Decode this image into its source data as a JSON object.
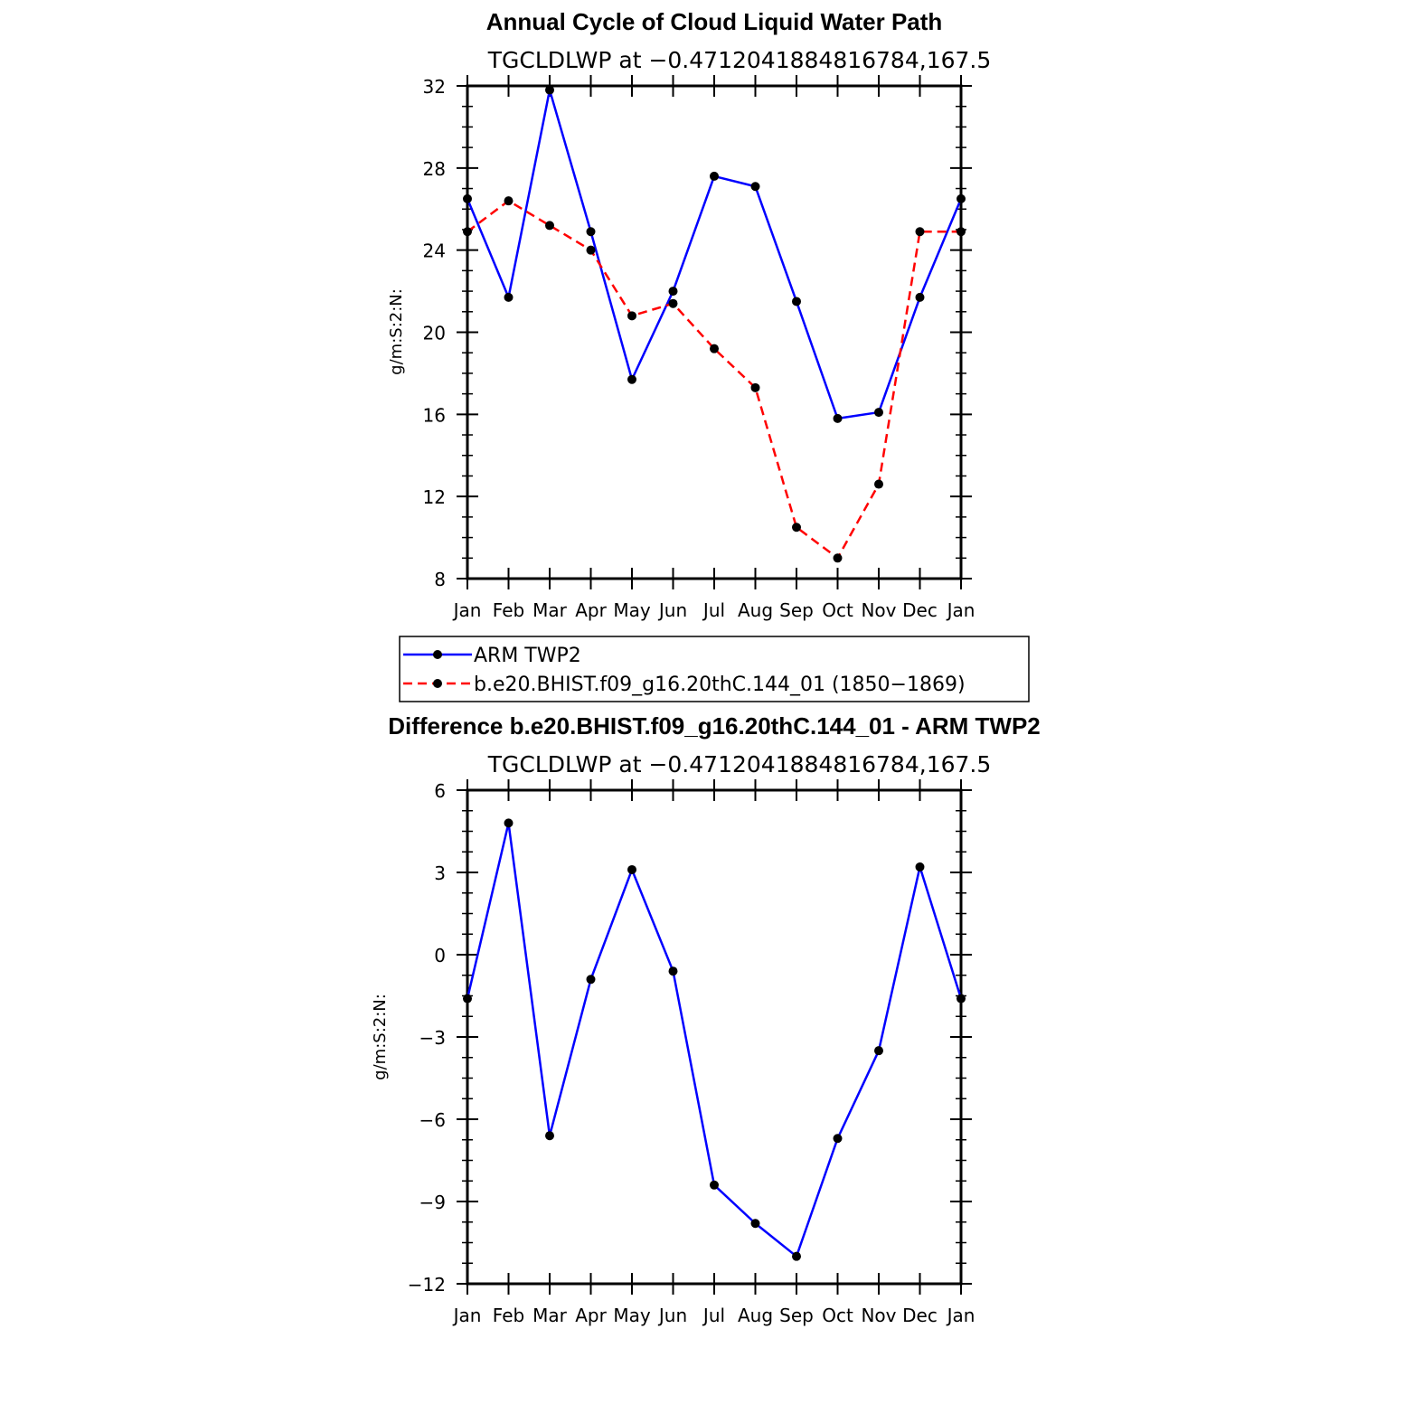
{
  "chart_data": [
    {
      "type": "line",
      "title": "Annual Cycle of Cloud Liquid Water Path",
      "subtitle": "TGCLDLWP at −0.4712041884816784,167.5",
      "xlabel": "",
      "ylabel": "g/m:S:2:N:",
      "categories": [
        "Jan",
        "Feb",
        "Mar",
        "Apr",
        "May",
        "Jun",
        "Jul",
        "Aug",
        "Sep",
        "Oct",
        "Nov",
        "Dec",
        "Jan"
      ],
      "ylim": [
        8,
        32
      ],
      "yticks": [
        "8",
        "12",
        "16",
        "20",
        "24",
        "28",
        "32"
      ],
      "grid": false,
      "legend_position": "below",
      "series": [
        {
          "name": "ARM  TWP2",
          "color": "#0000ff",
          "dash": "solid",
          "values": [
            26.5,
            21.7,
            31.8,
            24.9,
            17.7,
            22.0,
            27.6,
            27.1,
            21.5,
            15.8,
            16.1,
            21.7,
            26.5
          ]
        },
        {
          "name": "b.e20.BHIST.f09_g16.20thC.144_01  (1850−1869)",
          "color": "#ff0000",
          "dash": "dashed",
          "values": [
            24.9,
            26.4,
            25.2,
            24.0,
            20.8,
            21.4,
            19.2,
            17.3,
            10.5,
            9.0,
            12.6,
            24.9,
            24.9
          ]
        }
      ]
    },
    {
      "type": "line",
      "title": "Difference b.e20.BHIST.f09_g16.20thC.144_01 - ARM TWP2",
      "subtitle": "TGCLDLWP at −0.4712041884816784,167.5",
      "xlabel": "",
      "ylabel": "g/m:S:2:N:",
      "categories": [
        "Jan",
        "Feb",
        "Mar",
        "Apr",
        "May",
        "Jun",
        "Jul",
        "Aug",
        "Sep",
        "Oct",
        "Nov",
        "Dec",
        "Jan"
      ],
      "ylim": [
        -12,
        6
      ],
      "yticks": [
        "−12",
        "−9",
        "−6",
        "−3",
        "0",
        "3",
        "6"
      ],
      "grid": false,
      "series": [
        {
          "color": "#0000ff",
          "dash": "solid",
          "values": [
            -1.6,
            4.8,
            -6.6,
            -0.9,
            3.1,
            -0.6,
            -8.4,
            -9.8,
            -11.0,
            -6.7,
            -3.5,
            3.2,
            -1.6
          ]
        }
      ]
    }
  ]
}
